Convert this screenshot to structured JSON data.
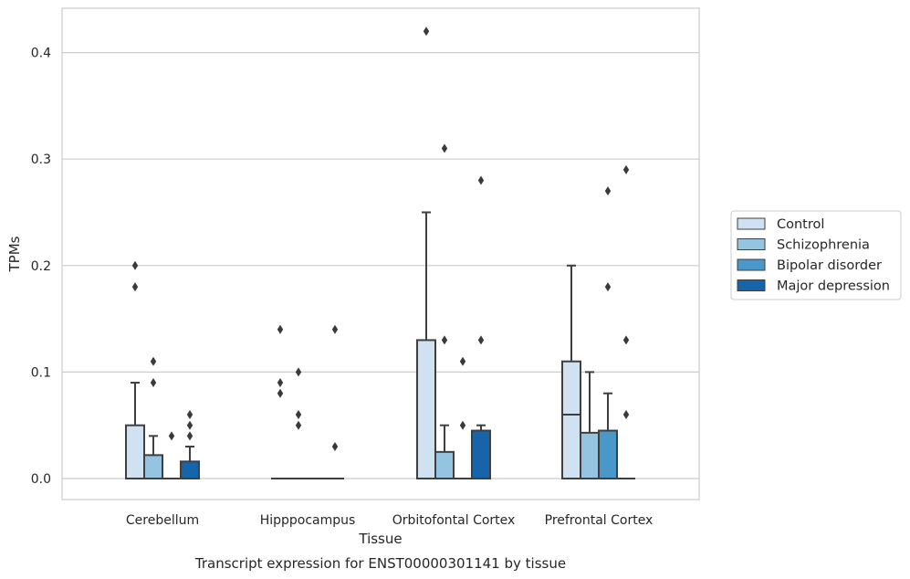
{
  "chart_data": {
    "type": "box",
    "title": "",
    "xlabel": "Tissue",
    "ylabel": "TPMs",
    "caption": "Transcript expression for ENST00000301141 by tissue",
    "ylim": [
      -0.021,
      0.442
    ],
    "yticks": [
      0.0,
      0.1,
      0.2,
      0.3,
      0.4
    ],
    "ytick_labels": [
      "0.0",
      "0.1",
      "0.2",
      "0.3",
      "0.4"
    ],
    "grid": "horizontal",
    "legend_position": "right",
    "categories": [
      "Cerebellum",
      "Hipppocampus",
      "Orbitofontal Cortex",
      "Prefrontal Cortex"
    ],
    "series": [
      {
        "name": "Control",
        "color": "#d0e1f2",
        "boxes": [
          {
            "q1": 0.0,
            "median": 0.0,
            "q3": 0.05,
            "whislo": 0.0,
            "whishi": 0.09,
            "fliers": [
              0.18,
              0.2
            ]
          },
          {
            "q1": 0.0,
            "median": 0.0,
            "q3": 0.0,
            "whislo": 0.0,
            "whishi": 0.0,
            "fliers": [
              0.08,
              0.09,
              0.14
            ]
          },
          {
            "q1": 0.0,
            "median": 0.0,
            "q3": 0.13,
            "whislo": 0.0,
            "whishi": 0.25,
            "fliers": [
              0.42
            ]
          },
          {
            "q1": 0.0,
            "median": 0.06,
            "q3": 0.11,
            "whislo": 0.0,
            "whishi": 0.2,
            "fliers": []
          }
        ]
      },
      {
        "name": "Schizophrenia",
        "color": "#94c4df",
        "boxes": [
          {
            "q1": 0.0,
            "median": 0.0,
            "q3": 0.022,
            "whislo": 0.0,
            "whishi": 0.04,
            "fliers": [
              0.09,
              0.11
            ]
          },
          {
            "q1": 0.0,
            "median": 0.0,
            "q3": 0.0,
            "whislo": 0.0,
            "whishi": 0.0,
            "fliers": [
              0.05,
              0.06,
              0.1
            ]
          },
          {
            "q1": 0.0,
            "median": 0.0,
            "q3": 0.025,
            "whislo": 0.0,
            "whishi": 0.05,
            "fliers": [
              0.13,
              0.31
            ]
          },
          {
            "q1": 0.0,
            "median": 0.0,
            "q3": 0.043,
            "whislo": 0.0,
            "whishi": 0.1,
            "fliers": []
          }
        ]
      },
      {
        "name": "Bipolar disorder",
        "color": "#4a98c9",
        "boxes": [
          {
            "q1": 0.0,
            "median": 0.0,
            "q3": 0.0,
            "whislo": 0.0,
            "whishi": 0.0,
            "fliers": [
              0.04
            ]
          },
          {
            "q1": 0.0,
            "median": 0.0,
            "q3": 0.0,
            "whislo": 0.0,
            "whishi": 0.0,
            "fliers": []
          },
          {
            "q1": 0.0,
            "median": 0.0,
            "q3": 0.0,
            "whislo": 0.0,
            "whishi": 0.0,
            "fliers": [
              0.05,
              0.11
            ]
          },
          {
            "q1": 0.0,
            "median": 0.0,
            "q3": 0.045,
            "whislo": 0.0,
            "whishi": 0.08,
            "fliers": [
              0.18,
              0.27
            ]
          }
        ]
      },
      {
        "name": "Major depression",
        "color": "#1764ab",
        "boxes": [
          {
            "q1": 0.0,
            "median": 0.0,
            "q3": 0.016,
            "whislo": 0.0,
            "whishi": 0.03,
            "fliers": [
              0.04,
              0.05,
              0.06
            ]
          },
          {
            "q1": 0.0,
            "median": 0.0,
            "q3": 0.0,
            "whislo": 0.0,
            "whishi": 0.0,
            "fliers": [
              0.03,
              0.14
            ]
          },
          {
            "q1": 0.0,
            "median": 0.0,
            "q3": 0.045,
            "whislo": 0.0,
            "whishi": 0.05,
            "fliers": [
              0.13,
              0.28
            ]
          },
          {
            "q1": 0.0,
            "median": 0.0,
            "q3": 0.0,
            "whislo": 0.0,
            "whishi": 0.0,
            "fliers": [
              0.06,
              0.13,
              0.29
            ]
          }
        ]
      }
    ]
  }
}
